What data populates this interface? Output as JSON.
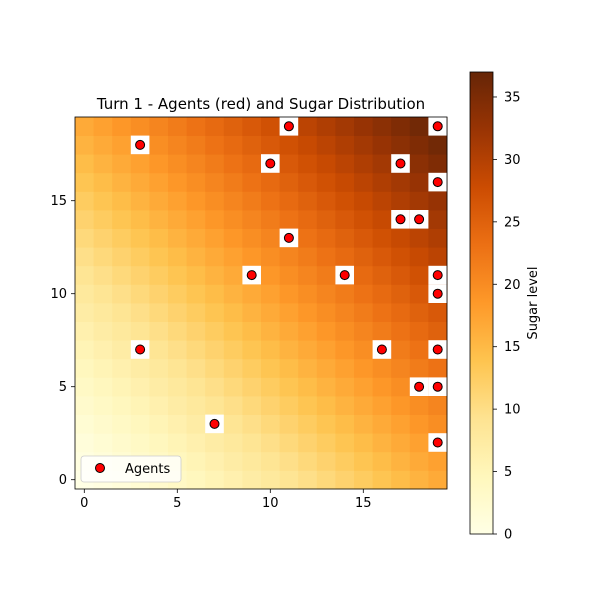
{
  "chart_data": {
    "type": "heatmap",
    "title": "Turn 1 - Agents (red) and Sugar Distribution",
    "xlabel": "",
    "ylabel": "",
    "grid_size": [
      20,
      20
    ],
    "xlim": [
      -0.5,
      19.5
    ],
    "ylim": [
      -0.5,
      19.5
    ],
    "x_ticks": [
      0,
      5,
      10,
      15
    ],
    "y_ticks": [
      0,
      5,
      10,
      15
    ],
    "grid": false,
    "heatmap": {
      "description_free_model": "sugar increases toward the top-right corner",
      "min": 0,
      "max": 37,
      "colormap": "YlOrBr"
    },
    "colorbar": {
      "label": "Sugar level",
      "ticks": [
        0,
        5,
        10,
        15,
        20,
        25,
        30,
        35
      ],
      "range": [
        0,
        37
      ]
    },
    "legend": {
      "placement": "lower-left",
      "entries": [
        {
          "label": "Agents",
          "color": "#ff0000"
        }
      ]
    },
    "series": [
      {
        "name": "Agents",
        "color": "#ff0000",
        "points": [
          [
            11,
            19
          ],
          [
            19,
            19
          ],
          [
            3,
            18
          ],
          [
            10,
            17
          ],
          [
            17,
            17
          ],
          [
            19,
            16
          ],
          [
            17,
            14
          ],
          [
            18,
            14
          ],
          [
            11,
            13
          ],
          [
            9,
            11
          ],
          [
            14,
            11
          ],
          [
            19,
            11
          ],
          [
            19,
            10
          ],
          [
            3,
            7
          ],
          [
            16,
            7
          ],
          [
            19,
            7
          ],
          [
            18,
            5
          ],
          [
            19,
            5
          ],
          [
            7,
            3
          ],
          [
            19,
            2
          ]
        ]
      }
    ]
  }
}
